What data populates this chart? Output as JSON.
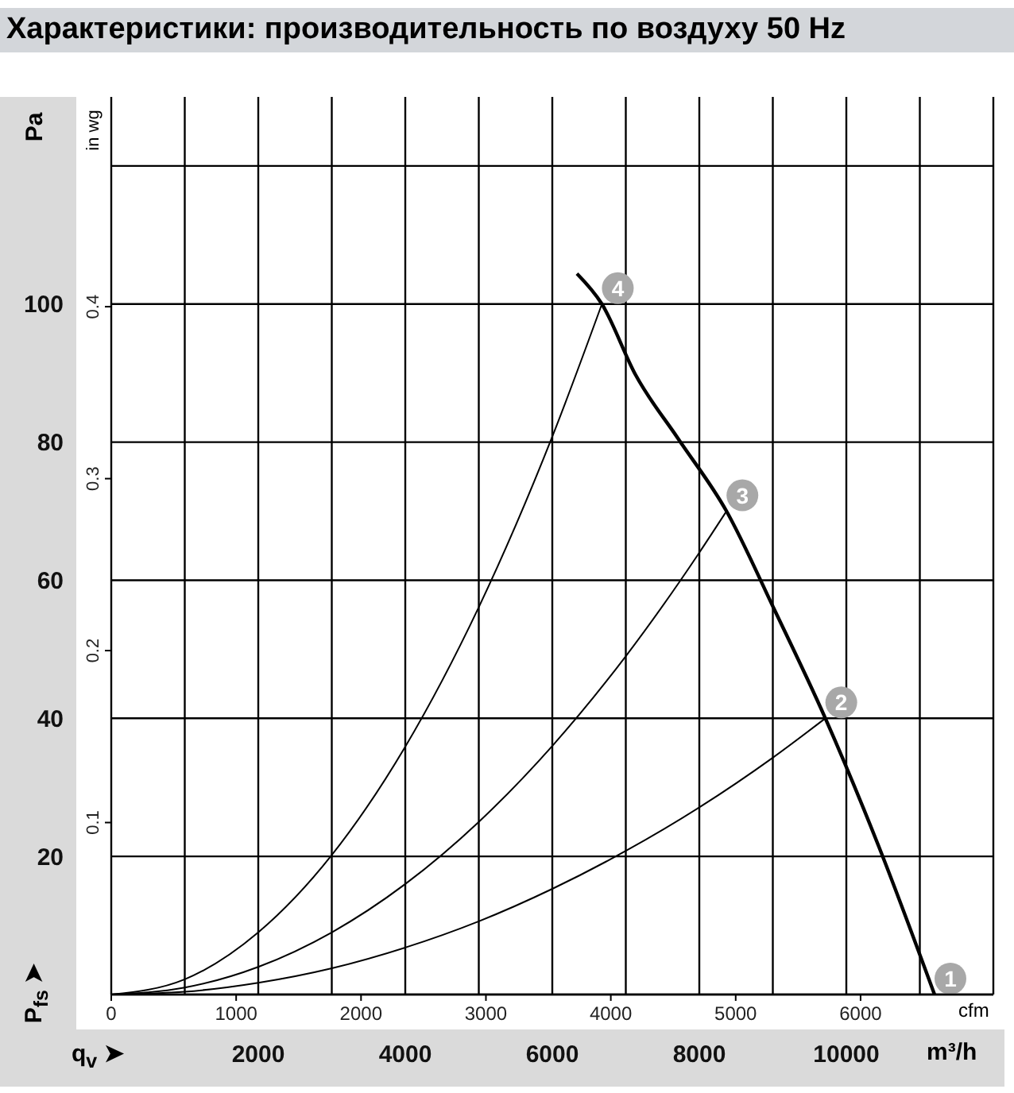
{
  "chart_data": {
    "type": "line",
    "title": "Характеристики: производительность по воздуху 50 Hz",
    "xlabel": "m³/h",
    "x2label": "cfm",
    "ylabel": "Pa",
    "y2label": "in wg",
    "xlim": [
      0,
      12000
    ],
    "xticks": [
      {
        "value": 0,
        "label": null
      },
      {
        "value": 1000,
        "label": null
      },
      2000,
      {
        "value": 3000,
        "label": null
      },
      4000,
      {
        "value": 5000,
        "label": null
      },
      6000,
      {
        "value": 7000,
        "label": null
      },
      8000,
      {
        "value": 9000,
        "label": null
      },
      10000,
      {
        "value": 11000,
        "label": null
      },
      {
        "value": 12000,
        "label": null
      }
    ],
    "x2lim": [
      0,
      7063
    ],
    "x2ticks": [
      0,
      1000,
      2000,
      3000,
      4000,
      5000,
      6000
    ],
    "ylim": [
      0,
      130
    ],
    "yticks": [
      {
        "value": 0,
        "label": null
      },
      20,
      40,
      60,
      80,
      100,
      {
        "value": 120,
        "label": null
      }
    ],
    "y2lim": [
      0,
      0.522
    ],
    "y2ticks": [
      0.1,
      0.2,
      0.3,
      0.4
    ],
    "grid": true,
    "marker": "none",
    "series": [
      {
        "color": "#000000",
        "x": [
          6335,
          6675,
          7135,
          7712,
          8370,
          9010,
          9715,
          10443,
          11200
        ],
        "values": [
          104.4,
          100,
          89.7,
          80.5,
          70,
          56,
          40,
          21.4,
          0
        ]
      },
      {
        "color": "#000000",
        "x": [
          0,
          1000,
          2000,
          3000,
          4000,
          5000,
          6000,
          6675
        ],
        "values": [
          0,
          2.2,
          9.0,
          20.2,
          35.9,
          56.1,
          80.8,
          100
        ]
      },
      {
        "color": "#000000",
        "x": [
          0,
          1000,
          2000,
          3000,
          4000,
          5000,
          6000,
          7000,
          8000,
          8370
        ],
        "values": [
          0,
          1.0,
          4.0,
          9.0,
          16.0,
          25.0,
          36.0,
          49.0,
          64.0,
          70
        ]
      },
      {
        "color": "#000000",
        "x": [
          0,
          1000,
          2000,
          3000,
          4000,
          5000,
          6000,
          7000,
          8000,
          9000,
          9715
        ],
        "values": [
          0,
          0.4,
          1.7,
          3.8,
          6.8,
          10.6,
          15.3,
          20.8,
          27.1,
          34.3,
          40
        ]
      }
    ],
    "annotations": [
      {
        "text": "1",
        "x": 11200,
        "y": 0
      },
      {
        "text": "2",
        "x": 9715,
        "y": 40
      },
      {
        "text": "3",
        "x": 8370,
        "y": 70
      },
      {
        "text": "4",
        "x": 6675,
        "y": 100
      },
      "P$_{fs}$ ➤",
      "q$_{v}$ ➤"
    ]
  }
}
